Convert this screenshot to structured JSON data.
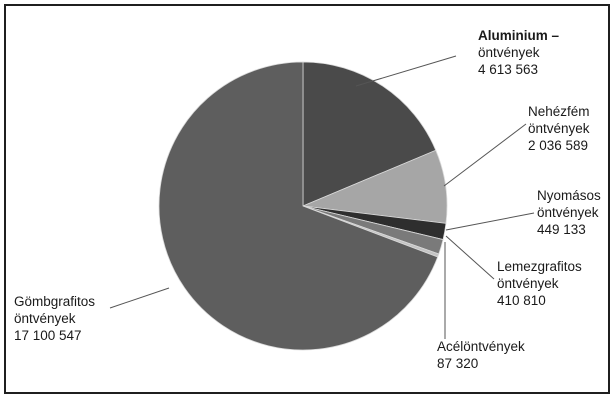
{
  "chart_data": {
    "type": "pie",
    "title": "",
    "start_angle_deg": 0,
    "direction": "clockwise",
    "slices": [
      {
        "name": "Aluminium - öntvények",
        "label_lines": [
          "Aluminium –",
          "öntvények",
          "4 613 563"
        ],
        "value": 4613563,
        "color": "#4a4a4a"
      },
      {
        "name": "Nehézfém öntvények",
        "label_lines": [
          "Nehézfém",
          "öntvények",
          "2 036 589"
        ],
        "value": 2036589,
        "color": "#a6a6a6"
      },
      {
        "name": "Nyomásos öntvények",
        "label_lines": [
          "Nyomásos",
          "öntvények",
          "449 133"
        ],
        "value": 449133,
        "color": "#2e2e2e"
      },
      {
        "name": "Lemezgrafitos öntvények",
        "label_lines": [
          "Lemezgrafitos",
          "öntvények",
          "410 810"
        ],
        "value": 410810,
        "color": "#7a7a7a"
      },
      {
        "name": "Acélöntvények",
        "label_lines": [
          "Acélöntvények",
          "87 320"
        ],
        "value": 87320,
        "color": "#c4c4c4"
      },
      {
        "name": "Gömbgrafitos öntvények",
        "label_lines": [
          "Gömbgrafitos",
          "öntvények",
          "17 100 547"
        ],
        "value": 17100547,
        "color": "#5e5e5e"
      }
    ],
    "legend": "none",
    "labels": "outside with leader lines"
  }
}
